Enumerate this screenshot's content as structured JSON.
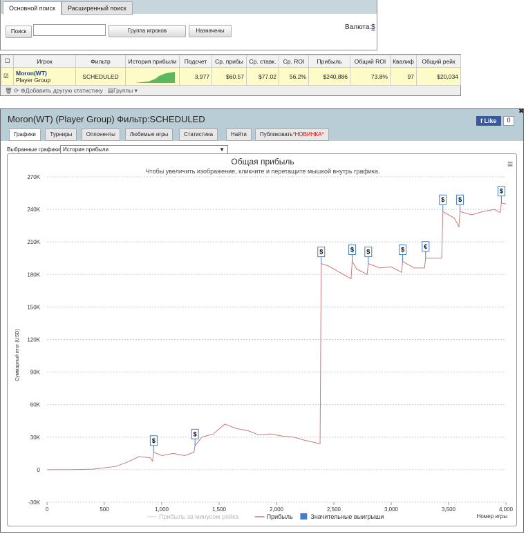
{
  "search": {
    "tabs": [
      "Основной поиск",
      "Расширенный поиск"
    ],
    "button": "Поиск",
    "group": "Группа игроков",
    "assigned": "Назначены",
    "currency_label": "Валюта:",
    "currency": "$"
  },
  "table": {
    "headers": [
      "Игрок",
      "Фильтр",
      "История прибыли",
      "Подсчет",
      "Ср. прибы",
      "Ср. ставк.",
      "Ср. ROI",
      "Прибыль",
      "Общий ROI",
      "Квалиф",
      "Общий рейк"
    ],
    "row": {
      "player": "Moron(WT)",
      "group": "Player Group",
      "filter": "SCHEDULED",
      "cells": [
        "3,977",
        "$60.57",
        "$77.02",
        "56.2%",
        "$240,886",
        "73.8%",
        "97",
        "$20,034"
      ]
    },
    "footer": {
      "add": "Добавить другую статистику",
      "groups": "Группы"
    }
  },
  "panel": {
    "title": "Moron(WT) (Player Group) Фильтр:SCHEDULED",
    "like": "Like",
    "like_count": 0,
    "tabs": [
      "Графики",
      "Турниры",
      "Оппоненты",
      "Любимые игры",
      "Статистика",
      "Найти",
      "Публиковать"
    ],
    "new_badge": "*НОВИНКА*",
    "select_label": "Выбранные графики:",
    "select": "История прибыли"
  },
  "chart_data": {
    "type": "line",
    "title": "Общая прибыль",
    "subtitle": "Чтобы увеличить изображение, кликните и перетащите мышкой внутрь графика.",
    "x_label": "Номер игры",
    "y_label": "Суммарный итог (USD)",
    "x": [
      0,
      200,
      400,
      600,
      700,
      800,
      900,
      920,
      930,
      1000,
      1100,
      1200,
      1280,
      1290,
      1350,
      1450,
      1550,
      1650,
      1750,
      1850,
      1950,
      2050,
      2150,
      2250,
      2380,
      2390,
      2450,
      2550,
      2650,
      2660,
      2700,
      2790,
      2800,
      2900,
      3000,
      3090,
      3100,
      3200,
      3290,
      3300,
      3440,
      3450,
      3550,
      3590,
      3600,
      3700,
      3800,
      3900,
      3950,
      3960,
      4000
    ],
    "series": [
      {
        "name": "Прибыль",
        "color": "#c8797a",
        "values": [
          0,
          0,
          500,
          3000,
          7000,
          12000,
          11000,
          8000,
          16000,
          13000,
          15000,
          13000,
          16000,
          22000,
          30000,
          33000,
          42000,
          38000,
          36000,
          32000,
          33000,
          31000,
          30000,
          27000,
          24000,
          190000,
          188000,
          182000,
          176000,
          192000,
          185000,
          180000,
          190000,
          186000,
          187000,
          182000,
          192000,
          186000,
          186000,
          195000,
          195000,
          238000,
          232000,
          224000,
          238000,
          235000,
          238000,
          240000,
          237000,
          246000,
          245000
        ]
      }
    ],
    "legend": [
      {
        "name": "Прибыль за минусом рейка",
        "color": "#dddddd"
      },
      {
        "name": "Прибыль",
        "color": "#c8797a"
      },
      {
        "name": "Значительные выигрыши",
        "color": "#3b7fd4"
      }
    ],
    "significant_wins": {
      "x": [
        930,
        1290,
        2390,
        2660,
        2800,
        3100,
        3300,
        3450,
        3600,
        3960
      ],
      "values": [
        16000,
        22000,
        190000,
        192000,
        190000,
        192000,
        195000,
        238000,
        238000,
        246000
      ],
      "labels": [
        "$",
        "$",
        "$",
        "$",
        "$",
        "$",
        "€",
        "$",
        "$",
        "$"
      ]
    },
    "xlim": [
      0,
      4000
    ],
    "xticks": [
      0,
      500,
      {
        "value": 1000,
        "label": "1,000"
      },
      {
        "value": 1500,
        "label": "1,500"
      },
      {
        "value": 2000,
        "label": "2,000"
      },
      {
        "value": 2500,
        "label": "2,500"
      },
      {
        "value": 3000,
        "label": "3,000"
      },
      {
        "value": 3500,
        "label": "3,500"
      },
      {
        "value": 4000,
        "label": "4,000"
      }
    ],
    "ylim": [
      -30000,
      270000
    ],
    "yticks": [
      {
        "value": -30000,
        "label": "-30K"
      },
      0,
      {
        "value": 30000,
        "label": "30K"
      },
      {
        "value": 60000,
        "label": "60K"
      },
      {
        "value": 90000,
        "label": "90K"
      },
      {
        "value": 120000,
        "label": "120K"
      },
      {
        "value": 150000,
        "label": "150K"
      },
      {
        "value": 180000,
        "label": "180K"
      },
      {
        "value": 210000,
        "label": "210K"
      },
      {
        "value": 240000,
        "label": "240K"
      },
      {
        "value": 270000,
        "label": "270K"
      }
    ],
    "grid": true
  }
}
